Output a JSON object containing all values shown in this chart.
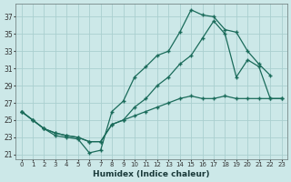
{
  "xlabel": "Humidex (Indice chaleur)",
  "bg_color": "#cce8e8",
  "grid_color": "#aacfcf",
  "line_color": "#1a6b5a",
  "xlim": [
    -0.5,
    23.5
  ],
  "ylim": [
    20.5,
    38.5
  ],
  "xticks": [
    0,
    1,
    2,
    3,
    4,
    5,
    6,
    7,
    8,
    9,
    10,
    11,
    12,
    13,
    14,
    15,
    16,
    17,
    18,
    19,
    20,
    21,
    22,
    23
  ],
  "yticks": [
    21,
    23,
    25,
    27,
    29,
    31,
    33,
    35,
    37
  ],
  "line1_x": [
    0,
    1,
    2,
    3,
    4,
    5,
    6,
    7,
    8,
    9,
    10,
    11,
    12,
    13,
    14,
    15,
    16,
    17,
    18,
    19,
    20,
    21,
    22
  ],
  "line1_y": [
    26,
    25,
    24,
    23.2,
    23,
    22.8,
    21.2,
    21.5,
    26,
    27.2,
    30.0,
    31.2,
    32.5,
    33.0,
    35.2,
    37.8,
    37.2,
    37,
    35.5,
    35.2,
    33,
    31.5,
    30.2
  ],
  "line2_x": [
    0,
    1,
    2,
    3,
    4,
    5,
    6,
    7,
    8,
    9,
    10,
    11,
    12,
    13,
    14,
    15,
    16,
    17,
    18,
    19,
    20,
    21,
    22,
    23
  ],
  "line2_y": [
    26,
    25,
    24,
    23.5,
    23.2,
    23,
    22.5,
    22.5,
    24.5,
    25,
    26.5,
    27.5,
    29,
    30,
    31.5,
    32.5,
    34.5,
    36.5,
    35,
    30,
    32,
    31.2,
    27.5,
    27.5
  ],
  "line3_x": [
    0,
    1,
    2,
    3,
    4,
    5,
    6,
    7,
    8,
    9,
    10,
    11,
    12,
    13,
    14,
    15,
    16,
    17,
    18,
    19,
    20,
    21,
    22,
    23
  ],
  "line3_y": [
    26,
    25,
    24,
    23.5,
    23.2,
    23,
    22.5,
    22.5,
    24.5,
    25,
    25.5,
    26,
    26.5,
    27,
    27.5,
    27.8,
    27.5,
    27.5,
    27.8,
    27.5,
    27.5,
    27.5,
    27.5,
    27.5
  ]
}
